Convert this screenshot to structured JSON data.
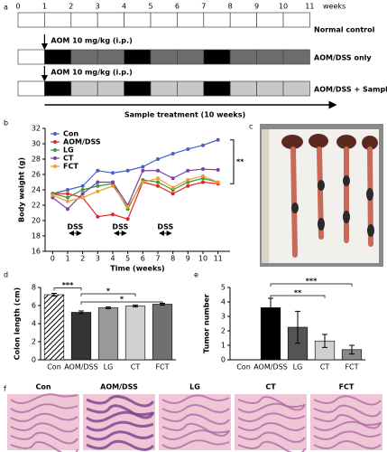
{
  "panels": [
    "a",
    "b",
    "c",
    "d",
    "e",
    "f"
  ],
  "timeline": {
    "weeks": [
      0,
      1,
      2,
      3,
      4,
      5,
      6,
      7,
      8,
      9,
      10,
      11
    ],
    "unit": "weeks",
    "dss": "DSS",
    "sample": "Sample treatment (10 weeks)",
    "rows": [
      {
        "label": "Normal control",
        "fill": "#ffffff",
        "dss": []
      },
      {
        "label": "AOM/DSS only",
        "fill": "#6d6d6d",
        "dss": [
          1,
          4,
          7
        ],
        "note": "AOM 10 mg/kg (i.p.)"
      },
      {
        "label": "AOM/DSS + Sample",
        "fill": "#c8c8c8",
        "dss": [
          1,
          4,
          7
        ],
        "note": "AOM 10 mg/kg (i.p.)"
      }
    ]
  },
  "chart_data": [
    {
      "type": "line",
      "xlabel": "Time (weeks)",
      "ylabel": "Body weight (g)",
      "x": [
        0,
        1,
        2,
        3,
        4,
        5,
        6,
        7,
        8,
        9,
        10,
        11
      ],
      "xlim": [
        -0.5,
        11.8
      ],
      "xticks": [
        0,
        1,
        2,
        3,
        4,
        5,
        6,
        7,
        8,
        9,
        10,
        11
      ],
      "ylim": [
        16,
        32
      ],
      "yticks": [
        16,
        18,
        20,
        22,
        24,
        26,
        28,
        30,
        32
      ],
      "series": [
        {
          "name": "Con",
          "color": "#4a5fc1",
          "values": [
            23.5,
            24,
            24.5,
            26.5,
            26.2,
            26.5,
            27,
            28,
            28.7,
            29.3,
            29.8,
            30.5
          ]
        },
        {
          "name": "AOM/DSS",
          "color": "#e0262b",
          "values": [
            23.5,
            23.5,
            23,
            20.5,
            20.8,
            20.2,
            25,
            24.5,
            23.5,
            24.5,
            25,
            24.8
          ]
        },
        {
          "name": "LG",
          "color": "#3a9a3a",
          "values": [
            23.5,
            23,
            24,
            24.5,
            24.8,
            21.5,
            25.3,
            25,
            24,
            25,
            25.5,
            25
          ]
        },
        {
          "name": "CT",
          "color": "#7b3fa8",
          "values": [
            23,
            21.5,
            23.5,
            25,
            25,
            22,
            26.5,
            26.5,
            25.5,
            26.5,
            26.7,
            26.6
          ]
        },
        {
          "name": "FCT",
          "color": "#f39a2b",
          "values": [
            23.3,
            22.5,
            23,
            23.8,
            24.5,
            21.8,
            25,
            25.5,
            24.3,
            25.3,
            25.8,
            25
          ]
        }
      ],
      "annotations": [
        {
          "text": "DSS",
          "from": 1,
          "to": 2
        },
        {
          "text": "DSS",
          "from": 4,
          "to": 5
        },
        {
          "text": "DSS",
          "from": 7,
          "to": 8
        }
      ],
      "significance": "**"
    },
    {
      "type": "bar",
      "ylabel": "Colon length (cm)",
      "categories": [
        "Con",
        "AOM/DSS",
        "LG",
        "CT",
        "FCT"
      ],
      "values": [
        7.2,
        5.25,
        5.75,
        5.95,
        6.15
      ],
      "errors": [
        0.15,
        0.15,
        0.1,
        0.1,
        0.1
      ],
      "colors": [
        "#ffffff",
        "#333333",
        "#9a9a9a",
        "#d0d0d0",
        "#707070"
      ],
      "hatched": [
        true,
        false,
        false,
        false,
        false
      ],
      "ylim": [
        0,
        8
      ],
      "yticks": [
        0,
        2,
        4,
        6,
        8
      ],
      "comparisons": [
        {
          "between": [
            "Con",
            "AOM/DSS"
          ],
          "label": "***"
        },
        {
          "between": [
            "AOM/DSS",
            "CT"
          ],
          "label": "*"
        },
        {
          "between": [
            "AOM/DSS",
            "FCT"
          ],
          "label": "*"
        }
      ]
    },
    {
      "type": "bar",
      "ylabel": "Tumor number",
      "categories": [
        "Con",
        "AOM/DSS",
        "LG",
        "CT",
        "FCT"
      ],
      "values": [
        0,
        3.6,
        2.25,
        1.3,
        0.7
      ],
      "errors": [
        0,
        0.65,
        1.1,
        0.45,
        0.3
      ],
      "colors": [
        "#ffffff",
        "#000000",
        "#555555",
        "#d0d0d0",
        "#888888"
      ],
      "hatched": [
        false,
        false,
        false,
        false,
        false
      ],
      "ylim": [
        0,
        5
      ],
      "yticks": [
        0,
        1,
        2,
        3,
        4,
        5
      ],
      "comparisons": [
        {
          "between": [
            "AOM/DSS",
            "CT"
          ],
          "label": "**"
        },
        {
          "between": [
            "AOM/DSS",
            "FCT"
          ],
          "label": "***"
        }
      ]
    }
  ],
  "histology": {
    "labels": [
      "Con",
      "AOM/DSS",
      "LG",
      "CT",
      "FCT"
    ]
  }
}
